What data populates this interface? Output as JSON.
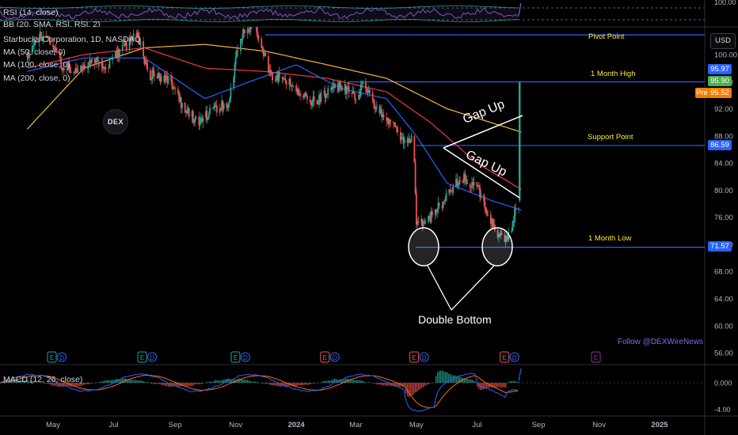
{
  "header": {
    "rsi_label": "RSI (14, close)",
    "bb_label": "BB (20, SMA, RSI, RSI, 2)",
    "symbol_label": "Starbucks Corporation, 1D, NASDAQ",
    "ma_labels": [
      "MA (50, close, 0)",
      "MA (100, close, 0)",
      "MA (200, close, 0)"
    ],
    "macd_label": "MACD (12, 26, close)",
    "currency": "USD",
    "pre_badge": "Pre"
  },
  "watermark": "DEX",
  "follow_text": "Follow @DEXWireNews",
  "annotations": {
    "pivot": "Pivot Point",
    "high": "1 Month High",
    "support": "Support Point",
    "low": "1 Month Low",
    "gap1": "Gap Up",
    "gap2": "Gap Up",
    "double_bottom": "Double Bottom"
  },
  "colors": {
    "up": "#26a69a",
    "down": "#ef5350",
    "ma50": "#2962ff",
    "ma100": "#f23645",
    "ma200": "#f6b63a",
    "level_line": "#2962ff",
    "annotation_text": "#ffeb3b",
    "macd_line": "#2962ff",
    "signal_line": "#ff6d00",
    "rsi_line": "#7e57c2",
    "badge_blue": "#2962ff",
    "badge_green": "#4caf50",
    "badge_orange": "#f57c00"
  },
  "price_badges": [
    {
      "label": "95.97",
      "value": 95.97,
      "color": "#2962ff"
    },
    {
      "label": "95.90",
      "value": 95.9,
      "color": "#4caf50"
    },
    {
      "label": "95.52",
      "value": 95.52,
      "color": "#f57c00"
    },
    {
      "label": "86.59",
      "value": 86.59,
      "color": "#2962ff"
    },
    {
      "label": "71.57",
      "value": 71.57,
      "color": "#2962ff"
    }
  ],
  "events": [
    {
      "date": "2023-05-01",
      "types": [
        "E",
        "D"
      ]
    },
    {
      "date": "2023-07-31",
      "types": [
        "E",
        "D"
      ]
    },
    {
      "date": "2023-11-02",
      "types": [
        "E",
        "D"
      ]
    },
    {
      "date": "2024-01-31",
      "types": [
        "E",
        "D"
      ]
    },
    {
      "date": "2024-04-30",
      "types": [
        "E",
        "D"
      ]
    },
    {
      "date": "2024-07-30",
      "types": [
        "E",
        "D"
      ]
    },
    {
      "date": "2024-10-30",
      "types": [
        "E"
      ]
    }
  ],
  "chart_data": [
    {
      "type": "line",
      "name": "RSI (14, close)",
      "ticks": [
        "100.00"
      ]
    },
    {
      "type": "candlestick",
      "title": "Starbucks Corporation, 1D, NASDAQ",
      "ylim": [
        52,
        106
      ],
      "price_ticks": [
        100,
        96,
        92,
        88,
        84,
        80,
        76,
        72,
        68,
        64,
        60,
        56
      ],
      "price_tick_labels": [
        "100.00",
        "96.00",
        "92.00",
        "88.00",
        "84.00",
        "80.00",
        "76.00",
        "72.00",
        "68.00",
        "64.00",
        "60.00",
        "56.00"
      ],
      "x_tick_labels": [
        "May",
        "Jul",
        "Sep",
        "Nov",
        "2024",
        "Mar",
        "May",
        "Jul",
        "Sep",
        "Nov",
        "2025"
      ],
      "x_tick_dates": [
        "2023-05-01",
        "2023-07-01",
        "2023-09-01",
        "2023-11-01",
        "2024-01-01",
        "2024-03-01",
        "2024-05-01",
        "2024-07-01",
        "2024-09-01",
        "2024-11-01",
        "2025-01-01"
      ],
      "levels": {
        "pivot": 102.9,
        "one_month_high": 95.97,
        "support": 86.59,
        "one_month_low": 71.57
      },
      "anchors": [
        [
          "2023-04-05",
          100
        ],
        [
          "2023-04-20",
          103
        ],
        [
          "2023-05-02",
          101
        ],
        [
          "2023-05-10",
          98.5
        ],
        [
          "2023-05-25",
          97.5
        ],
        [
          "2023-06-10",
          99
        ],
        [
          "2023-06-25",
          98.5
        ],
        [
          "2023-07-10",
          101
        ],
        [
          "2023-07-25",
          103
        ],
        [
          "2023-08-05",
          97
        ],
        [
          "2023-08-25",
          96.5
        ],
        [
          "2023-09-10",
          92
        ],
        [
          "2023-09-25",
          90
        ],
        [
          "2023-10-10",
          92
        ],
        [
          "2023-10-25",
          93
        ],
        [
          "2023-11-05",
          102.5
        ],
        [
          "2023-11-20",
          105
        ],
        [
          "2023-12-05",
          97
        ],
        [
          "2023-12-20",
          96.5
        ],
        [
          "2024-01-05",
          94
        ],
        [
          "2024-01-20",
          93
        ],
        [
          "2024-02-02",
          94.5
        ],
        [
          "2024-02-15",
          95.5
        ],
        [
          "2024-03-01",
          93.5
        ],
        [
          "2024-03-10",
          96
        ],
        [
          "2024-03-20",
          92
        ],
        [
          "2024-04-05",
          90
        ],
        [
          "2024-04-20",
          87
        ],
        [
          "2024-04-28",
          88
        ],
        [
          "2024-05-01",
          75
        ],
        [
          "2024-05-15",
          76
        ],
        [
          "2024-06-01",
          79
        ],
        [
          "2024-06-15",
          82
        ],
        [
          "2024-07-01",
          80.5
        ],
        [
          "2024-07-12",
          76
        ],
        [
          "2024-07-25",
          73
        ],
        [
          "2024-08-01",
          72.5
        ],
        [
          "2024-08-08",
          76.5
        ],
        [
          "2024-08-12",
          77
        ],
        [
          "2024-08-16",
          78.5
        ]
      ],
      "last_candle": {
        "date": "2024-08-13",
        "open": 78.5,
        "close": 95.9,
        "high": 95.97,
        "low": 78.2
      },
      "ma50": [
        [
          "2023-04-05",
          97.5
        ],
        [
          "2023-06-01",
          99.5
        ],
        [
          "2023-08-01",
          99.5
        ],
        [
          "2023-10-01",
          93.5
        ],
        [
          "2023-11-15",
          96
        ],
        [
          "2024-01-01",
          98.5
        ],
        [
          "2024-02-15",
          95
        ],
        [
          "2024-04-01",
          93.5
        ],
        [
          "2024-05-01",
          88
        ],
        [
          "2024-06-01",
          81
        ],
        [
          "2024-07-15",
          78.5
        ],
        [
          "2024-08-16",
          77
        ]
      ],
      "ma100": [
        [
          "2023-04-05",
          98
        ],
        [
          "2023-06-01",
          100
        ],
        [
          "2023-08-01",
          101
        ],
        [
          "2023-10-01",
          98
        ],
        [
          "2023-12-01",
          97.5
        ],
        [
          "2024-02-01",
          96.5
        ],
        [
          "2024-04-01",
          94.5
        ],
        [
          "2024-05-15",
          90
        ],
        [
          "2024-07-01",
          84
        ],
        [
          "2024-08-16",
          80
        ]
      ],
      "ma200": [
        [
          "2023-04-05",
          89
        ],
        [
          "2023-06-01",
          98
        ],
        [
          "2023-08-01",
          101
        ],
        [
          "2023-10-01",
          101.5
        ],
        [
          "2023-12-01",
          100.5
        ],
        [
          "2024-02-01",
          98.5
        ],
        [
          "2024-04-01",
          96.5
        ],
        [
          "2024-06-01",
          92
        ],
        [
          "2024-08-16",
          88.5
        ]
      ]
    },
    {
      "type": "macd",
      "name": "MACD (12, 26, close)",
      "ticks": [
        0,
        -4
      ],
      "tick_labels": [
        "0.000",
        "-4.00"
      ]
    }
  ]
}
